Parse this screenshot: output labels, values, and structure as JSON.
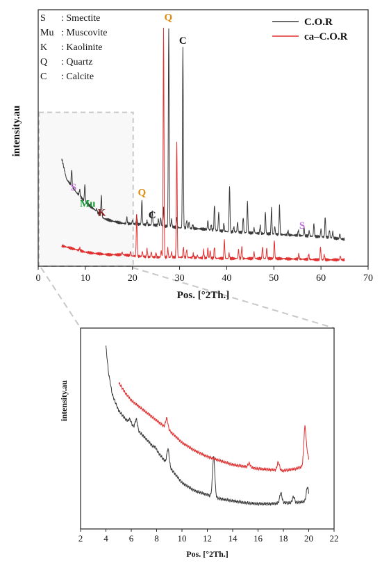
{
  "colors": {
    "cor": "#3a3a3a",
    "ca_cor": "#e03030",
    "smectite": "#c070d8",
    "muscovite": "#1a9a3a",
    "kaolinite": "#8b1a1a",
    "quartz": "#e08a10",
    "calcite": "#111111",
    "zoom_box": "#c8c8c8"
  },
  "chart_data": [
    {
      "type": "line",
      "xlabel": "Pos. [°2Th.]",
      "ylabel": "intensity.au",
      "xlim": [
        0,
        70
      ],
      "ylim": [
        0,
        100
      ],
      "xticks": [
        0,
        10,
        20,
        30,
        40,
        50,
        60,
        70
      ],
      "legend": {
        "placement": "top-right",
        "entries": [
          "C.O.R",
          "ca–C.O.R"
        ]
      },
      "mineral_key": {
        "placement": "top-left",
        "entries": [
          {
            "symbol": "S",
            "name": ": Smectite",
            "color": "#c070d8"
          },
          {
            "symbol": "Mu",
            "name": ": Muscovite",
            "color": "#1a9a3a"
          },
          {
            "symbol": "K",
            "name": ": Kaolinite",
            "color": "#8b1a1a"
          },
          {
            "symbol": "Q",
            "name": ": Quartz",
            "color": "#e08a10"
          },
          {
            "symbol": "C",
            "name": ": Calcite",
            "color": "#111111"
          }
        ]
      },
      "series": [
        {
          "name": "C.O.R",
          "color": "#3a3a3a",
          "baseline": [
            [
              5,
              42
            ],
            [
              6,
              34
            ],
            [
              8,
              29
            ],
            [
              10,
              25
            ],
            [
              12,
              22
            ],
            [
              14,
              18.5
            ],
            [
              16,
              17.5
            ],
            [
              18,
              16.7
            ],
            [
              20,
              16.5
            ],
            [
              25,
              16
            ],
            [
              30,
              15
            ],
            [
              35,
              14.5
            ],
            [
              40,
              13.5
            ],
            [
              45,
              13
            ],
            [
              50,
              12.5
            ],
            [
              55,
              12
            ],
            [
              60,
              11.5
            ],
            [
              65,
              10.5
            ]
          ],
          "peaks": [
            [
              7.1,
              6.5
            ],
            [
              8.8,
              2.5
            ],
            [
              9.9,
              6.5
            ],
            [
              12.4,
              1
            ],
            [
              13.4,
              8
            ],
            [
              18.8,
              2.5
            ],
            [
              20.0,
              1.5
            ],
            [
              20.9,
              3.5
            ],
            [
              22.0,
              9.5
            ],
            [
              23.1,
              1.5
            ],
            [
              24.2,
              5.5
            ],
            [
              25.5,
              2.5
            ],
            [
              26.0,
              3
            ],
            [
              26.6,
              7
            ],
            [
              27.7,
              77
            ],
            [
              28.3,
              3
            ],
            [
              29.4,
              4
            ],
            [
              30.7,
              70
            ],
            [
              31.5,
              3
            ],
            [
              32.0,
              2.5
            ],
            [
              32.8,
              1.5
            ],
            [
              36.0,
              3.5
            ],
            [
              36.7,
              2
            ],
            [
              37.4,
              10
            ],
            [
              38.3,
              7
            ],
            [
              39.4,
              3
            ],
            [
              40.6,
              18
            ],
            [
              41.5,
              2
            ],
            [
              42.3,
              4
            ],
            [
              43.5,
              6
            ],
            [
              44.4,
              12
            ],
            [
              45.8,
              2
            ],
            [
              47.1,
              3
            ],
            [
              48.2,
              8.5
            ],
            [
              49.5,
              10
            ],
            [
              50.2,
              3
            ],
            [
              51.2,
              11
            ],
            [
              53.0,
              1.5
            ],
            [
              55.2,
              2
            ],
            [
              56.4,
              3.5
            ],
            [
              57.5,
              2
            ],
            [
              58.5,
              5
            ],
            [
              60.0,
              3
            ],
            [
              60.9,
              8
            ],
            [
              61.8,
              3
            ],
            [
              62.5,
              2.5
            ],
            [
              64.0,
              2
            ]
          ]
        },
        {
          "name": "ca–C.O.R",
          "color": "#e03030",
          "baseline": [
            [
              5,
              8
            ],
            [
              6,
              7.5
            ],
            [
              8,
              6.5
            ],
            [
              10,
              5.5
            ],
            [
              12,
              5
            ],
            [
              15,
              4.5
            ],
            [
              18,
              4.5
            ],
            [
              20,
              4
            ],
            [
              25,
              3.5
            ],
            [
              30,
              3.5
            ],
            [
              35,
              3.2
            ],
            [
              40,
              3
            ],
            [
              45,
              3
            ],
            [
              50,
              3
            ],
            [
              55,
              2.8
            ],
            [
              60,
              2.5
            ],
            [
              65,
              2.5
            ]
          ],
          "peaks": [
            [
              8.8,
              1
            ],
            [
              17.8,
              1
            ],
            [
              19.6,
              1.5
            ],
            [
              20.9,
              16
            ],
            [
              22.1,
              2
            ],
            [
              23.1,
              3
            ],
            [
              24.0,
              2
            ],
            [
              25.0,
              1.5
            ],
            [
              26.1,
              2.5
            ],
            [
              26.6,
              89
            ],
            [
              27.5,
              3.5
            ],
            [
              28.3,
              2
            ],
            [
              29.4,
              45
            ],
            [
              30.8,
              4
            ],
            [
              31.5,
              3
            ],
            [
              32.9,
              1.5
            ],
            [
              33.8,
              1
            ],
            [
              35.1,
              3
            ],
            [
              36.0,
              4
            ],
            [
              36.5,
              3
            ],
            [
              37.4,
              4.5
            ],
            [
              39.5,
              7
            ],
            [
              40.5,
              2
            ],
            [
              42.5,
              3.5
            ],
            [
              43.2,
              4.5
            ],
            [
              45.8,
              2.5
            ],
            [
              47.6,
              4.5
            ],
            [
              48.5,
              4
            ],
            [
              50.1,
              7
            ],
            [
              55.3,
              2
            ],
            [
              57.4,
              2
            ],
            [
              59.9,
              5
            ],
            [
              60.7,
              2
            ],
            [
              64.1,
              1.5
            ]
          ]
        }
      ],
      "annotations": [
        {
          "label": "S",
          "x": 7.5,
          "y": 29.5,
          "color": "#c070d8"
        },
        {
          "label": "Mu",
          "x": 10.5,
          "y": 23.2,
          "color": "#1a9a3a"
        },
        {
          "label": "K",
          "x": 13.5,
          "y": 19.6,
          "color": "#8b1a1a"
        },
        {
          "label": "Q",
          "x": 22.0,
          "y": 27.5,
          "color": "#e08a10"
        },
        {
          "label": "C",
          "x": 24.2,
          "y": 18.7,
          "color": "#111111"
        },
        {
          "label": "Q",
          "x": 27.6,
          "y": 95.8,
          "color": "#e08a10"
        },
        {
          "label": "C",
          "x": 30.7,
          "y": 86.7,
          "color": "#111111"
        },
        {
          "label": "S",
          "x": 56.0,
          "y": 14.6,
          "color": "#c070d8"
        }
      ],
      "zoom_region": {
        "x": [
          0,
          20
        ],
        "y": [
          0,
          60
        ]
      }
    },
    {
      "type": "line",
      "xlabel": "Pos. [°2Th.]",
      "ylabel": "intensity.au",
      "xlim": [
        2,
        22
      ],
      "ylim": [
        0,
        100
      ],
      "xticks": [
        2,
        4,
        6,
        8,
        10,
        12,
        14,
        16,
        18,
        20,
        22
      ],
      "series": [
        {
          "name": "C.O.R",
          "color": "#3a3a3a",
          "baseline": [
            [
              4,
              91
            ],
            [
              4.2,
              78
            ],
            [
              4.5,
              67
            ],
            [
              5,
              59
            ],
            [
              5.5,
              55
            ],
            [
              6,
              52
            ],
            [
              7,
              46
            ],
            [
              8,
              39
            ],
            [
              9,
              31
            ],
            [
              10,
              23
            ],
            [
              11,
              19
            ],
            [
              12,
              17
            ],
            [
              13,
              15
            ],
            [
              14,
              14
            ],
            [
              15,
              13
            ],
            [
              16,
              12.5
            ],
            [
              17,
              12.5
            ],
            [
              18,
              13
            ],
            [
              19,
              13
            ],
            [
              20,
              14
            ]
          ],
          "peaks": [
            [
              5.9,
              2
            ],
            [
              6.4,
              5
            ],
            [
              7.9,
              1
            ],
            [
              8.9,
              8
            ],
            [
              12.5,
              20
            ],
            [
              17.8,
              5
            ],
            [
              18.8,
              3
            ],
            [
              19.9,
              7
            ]
          ]
        },
        {
          "name": "ca–C.O.R",
          "color": "#e03030",
          "baseline": [
            [
              5,
              73
            ],
            [
              5.5,
              68
            ],
            [
              6,
              64
            ],
            [
              7,
              59
            ],
            [
              8,
              54
            ],
            [
              9,
              49
            ],
            [
              10,
              43
            ],
            [
              11,
              39
            ],
            [
              12,
              36
            ],
            [
              13,
              34
            ],
            [
              14,
              32
            ],
            [
              15,
              31
            ],
            [
              16,
              30
            ],
            [
              17,
              29.5
            ],
            [
              18,
              29
            ],
            [
              19,
              30
            ],
            [
              19.5,
              31
            ],
            [
              20,
              32
            ]
          ],
          "peaks": [
            [
              8.8,
              5
            ],
            [
              15.3,
              2
            ],
            [
              17.6,
              4
            ],
            [
              19.7,
              19
            ],
            [
              19.9,
              5
            ]
          ]
        }
      ]
    }
  ]
}
